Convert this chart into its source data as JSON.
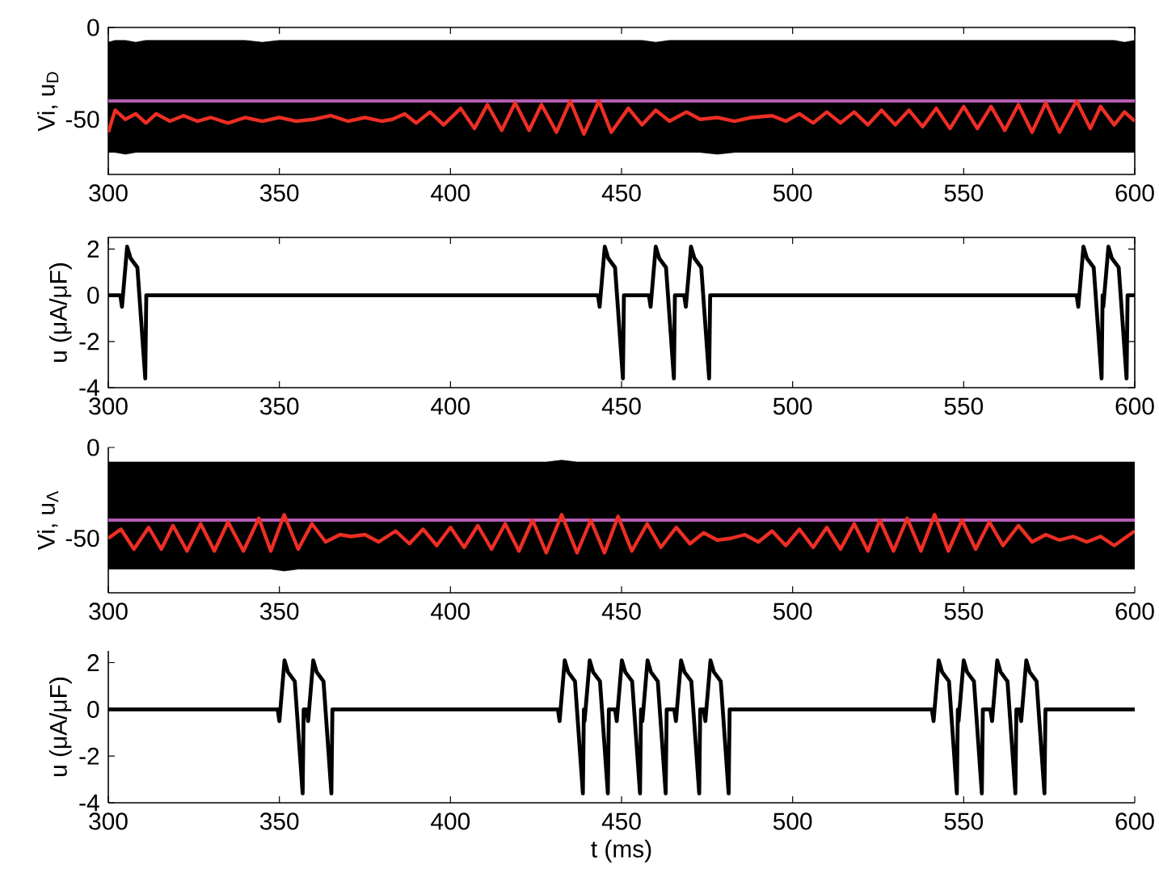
{
  "chart_data": [
    {
      "type": "line",
      "ylabel": "Vi, u$_{D}$",
      "xlim": [
        300,
        600
      ],
      "ylim": [
        -80,
        0
      ],
      "xticks": [
        300,
        350,
        400,
        450,
        500,
        550,
        600
      ],
      "yticks": [
        -50,
        0
      ],
      "ref_lines": [
        {
          "axis": "y",
          "value": -40,
          "color": "#b35cb3"
        }
      ],
      "series": [
        {
          "color": "#ee2e24",
          "x": [
            300,
            302,
            305,
            308,
            311,
            314,
            318,
            322,
            326,
            330,
            335,
            340,
            345,
            350,
            355,
            360,
            365,
            370,
            375,
            380,
            383,
            386.6,
            390,
            394,
            398,
            403,
            407,
            410.8,
            415,
            418.9,
            423,
            426.6,
            431,
            435,
            439,
            443.4,
            447,
            452,
            456,
            460,
            464,
            469,
            473,
            478,
            483,
            488,
            494,
            498,
            502,
            506,
            510,
            514,
            518,
            522,
            526,
            530,
            534,
            538,
            542,
            546,
            550,
            554,
            558,
            562,
            566,
            570,
            574,
            578,
            583,
            587,
            590,
            594,
            597,
            600
          ],
          "values": [
            -57,
            -45,
            -50,
            -47,
            -52,
            -47,
            -51,
            -48,
            -51,
            -49,
            -52,
            -49,
            -51,
            -49,
            -51,
            -50,
            -48,
            -51,
            -49,
            -51,
            -50,
            -47,
            -52,
            -46,
            -53,
            -44,
            -55,
            -42,
            -56,
            -41,
            -56,
            -42,
            -57,
            -40,
            -58,
            -40,
            -57,
            -44,
            -53,
            -45,
            -51,
            -46,
            -50,
            -49,
            -51,
            -49,
            -48,
            -51,
            -47,
            -52,
            -46,
            -52,
            -46,
            -53,
            -45,
            -53,
            -45,
            -54,
            -44,
            -55,
            -43,
            -55,
            -43,
            -56,
            -42,
            -57,
            -41,
            -57,
            -40,
            -55,
            -43,
            -53,
            -46,
            -51
          ],
          "upper": [
            -8,
            -7,
            -7,
            -8,
            -7,
            -7,
            -7,
            -7,
            -7,
            -7,
            -7,
            -7,
            -8,
            -7,
            -7,
            -7,
            -7,
            -7,
            -7,
            -7,
            -7,
            -7,
            -7,
            -7,
            -7,
            -7,
            -7,
            -7,
            -7,
            -7,
            -7,
            -7,
            -7,
            -7,
            -7,
            -7,
            -7,
            -7,
            -7,
            -8,
            -7,
            -7,
            -7,
            -7,
            -7,
            -7,
            -7,
            -7,
            -7,
            -7,
            -7,
            -7,
            -7,
            -7,
            -7,
            -7,
            -7,
            -7,
            -7,
            -7,
            -7,
            -7,
            -7,
            -7,
            -7,
            -7,
            -7,
            -7,
            -7,
            -7,
            -7,
            -7,
            -8,
            -7
          ],
          "lower": [
            -68,
            -68,
            -69,
            -68,
            -68,
            -68,
            -68,
            -68,
            -68,
            -68,
            -68,
            -68,
            -68,
            -68,
            -68,
            -68,
            -68,
            -68,
            -68,
            -68,
            -68,
            -68,
            -68,
            -68,
            -68,
            -68,
            -68,
            -68,
            -68,
            -68,
            -68,
            -68,
            -68,
            -68,
            -68,
            -68,
            -68,
            -68,
            -68,
            -68,
            -68,
            -68,
            -68,
            -69,
            -68,
            -68,
            -68,
            -68,
            -68,
            -68,
            -68,
            -68,
            -68,
            -68,
            -68,
            -68,
            -68,
            -68,
            -68,
            -68,
            -68,
            -68,
            -68,
            -68,
            -68,
            -68,
            -68,
            -68,
            -68,
            -68,
            -68,
            -68,
            -68,
            -68
          ]
        }
      ]
    },
    {
      "type": "line",
      "ylabel": "u (μA/μF)",
      "xlim": [
        300,
        600
      ],
      "ylim": [
        -4,
        2.5
      ],
      "xticks": [
        300,
        350,
        400,
        450,
        500,
        550,
        600
      ],
      "yticks": [
        -4,
        -2,
        0,
        2
      ],
      "series": [
        {
          "color": "#000000",
          "x": [
            300,
            303.5,
            304,
            305.5,
            306.5,
            308.5,
            310.8,
            311.1,
            443.1,
            443.6,
            445.1,
            446.1,
            448.1,
            450.4,
            450.7,
            458,
            458.5,
            460,
            461,
            463,
            465.3,
            465.6,
            468.3,
            468.8,
            470.3,
            471.3,
            473.3,
            475.6,
            475.9,
            583,
            583.5,
            585,
            586,
            588,
            590.3,
            590.6,
            590.8,
            592.3,
            593.3,
            595.3,
            597.6,
            597.9,
            600
          ],
          "values": [
            0,
            0,
            -0.5,
            2.1,
            1.6,
            1.2,
            -3.6,
            0,
            0,
            -0.5,
            2.1,
            1.6,
            1.2,
            -3.6,
            0,
            0,
            -0.5,
            2.1,
            1.6,
            1.2,
            -3.6,
            0,
            0,
            -0.5,
            2.1,
            1.6,
            1.2,
            -3.6,
            0,
            0,
            -0.5,
            2.1,
            1.6,
            1.2,
            -3.6,
            0,
            -0.5,
            2.1,
            1.6,
            1.2,
            -3.6,
            0,
            0
          ]
        }
      ]
    },
    {
      "type": "line",
      "ylabel": "Vi, u$_{Λ}$",
      "xlim": [
        300,
        600
      ],
      "ylim": [
        -80,
        0
      ],
      "xticks": [
        300,
        350,
        400,
        450,
        500,
        550,
        600
      ],
      "yticks": [
        -50,
        0
      ],
      "ref_lines": [
        {
          "axis": "y",
          "value": -40,
          "color": "#b35cb3"
        }
      ],
      "series": [
        {
          "color": "#ee2e24",
          "x": [
            300,
            303.7,
            307.5,
            311.8,
            315.5,
            318.9,
            323,
            327,
            331,
            335,
            339.5,
            344,
            347.5,
            351.4,
            355.5,
            359.5,
            363.5,
            367.7,
            371,
            375,
            379,
            384,
            388,
            392,
            396,
            400,
            404,
            408,
            412,
            416,
            420,
            424,
            428,
            432.5,
            437,
            441,
            445,
            449,
            453,
            457.5,
            461.5,
            466,
            470,
            474,
            478,
            482,
            486,
            490,
            494,
            498,
            502,
            506,
            510,
            514,
            518,
            522,
            525.5,
            529.5,
            533.5,
            537.5,
            541.5,
            545.5,
            549.5,
            553.5,
            557.5,
            561.5,
            566,
            570,
            574,
            578,
            582,
            586,
            590,
            594,
            597,
            600
          ],
          "values": [
            -50,
            -45,
            -56,
            -44,
            -56,
            -43,
            -57,
            -42,
            -57,
            -41,
            -57,
            -39,
            -57,
            -37,
            -56,
            -42,
            -52,
            -48,
            -49,
            -48,
            -52,
            -46,
            -53,
            -45,
            -54,
            -44,
            -55,
            -43,
            -56,
            -42,
            -57,
            -40,
            -58,
            -37,
            -58,
            -40,
            -58,
            -38,
            -57,
            -42,
            -55,
            -44,
            -53,
            -47,
            -51,
            -50,
            -48,
            -52,
            -46,
            -54,
            -45,
            -55,
            -44,
            -56,
            -42,
            -57,
            -40,
            -57,
            -39,
            -57,
            -37,
            -57,
            -40,
            -56,
            -41,
            -54,
            -43,
            -52,
            -48,
            -51,
            -49,
            -52,
            -49,
            -54,
            -50,
            -46
          ],
          "upper": [
            -8,
            -8,
            -8,
            -8,
            -8,
            -8,
            -8,
            -8,
            -8,
            -8,
            -8,
            -8,
            -8,
            -8,
            -8,
            -8,
            -8,
            -8,
            -8,
            -8,
            -8,
            -8,
            -8,
            -8,
            -8,
            -8,
            -8,
            -8,
            -8,
            -8,
            -8,
            -8,
            -8,
            -7,
            -8,
            -8,
            -8,
            -8,
            -8,
            -8,
            -8,
            -8,
            -8,
            -8,
            -8,
            -8,
            -8,
            -8,
            -8,
            -8,
            -8,
            -8,
            -8,
            -8,
            -8,
            -8,
            -8,
            -8,
            -8,
            -8,
            -8,
            -8,
            -8,
            -8,
            -8,
            -8,
            -8,
            -8,
            -8,
            -8,
            -8,
            -8,
            -8,
            -8,
            -8,
            -8
          ],
          "lower": [
            -67,
            -67,
            -67,
            -67,
            -67,
            -67,
            -67,
            -67,
            -67,
            -67,
            -67,
            -67,
            -67,
            -68,
            -67,
            -67,
            -67,
            -67,
            -67,
            -67,
            -67,
            -67,
            -67,
            -67,
            -67,
            -67,
            -67,
            -67,
            -67,
            -67,
            -67,
            -67,
            -67,
            -67,
            -67,
            -67,
            -67,
            -67,
            -67,
            -67,
            -67,
            -67,
            -67,
            -67,
            -67,
            -67,
            -67,
            -67,
            -67,
            -67,
            -67,
            -67,
            -67,
            -67,
            -67,
            -67,
            -67,
            -67,
            -67,
            -67,
            -67,
            -67,
            -67,
            -67,
            -67,
            -67,
            -67,
            -67,
            -67,
            -67,
            -67,
            -67,
            -67,
            -67,
            -67,
            -67
          ]
        }
      ]
    },
    {
      "type": "line",
      "ylabel": "u (μA/μF)",
      "xlabel": "t (ms)",
      "xlim": [
        300,
        600
      ],
      "ylim": [
        -4,
        2.5
      ],
      "xticks": [
        300,
        350,
        400,
        450,
        500,
        550,
        600
      ],
      "yticks": [
        -4,
        -2,
        0,
        2
      ],
      "series": [
        {
          "color": "#000000",
          "x": [
            300,
            349.5,
            350,
            351.5,
            352.5,
            354.5,
            356.8,
            357.1,
            357.9,
            358.4,
            359.9,
            360.9,
            362.9,
            365.2,
            365.5,
            431.4,
            431.9,
            433.4,
            434.4,
            436.4,
            438.7,
            439.0,
            439.2,
            440.7,
            441.7,
            443.7,
            446.0,
            446.3,
            448.1,
            448.6,
            450.1,
            451.1,
            453.1,
            455.4,
            455.7,
            456.1,
            457.6,
            458.6,
            460.6,
            462.9,
            463.2,
            465.4,
            465.9,
            467.4,
            468.4,
            470.4,
            472.7,
            473.0,
            474.0,
            474.5,
            476.0,
            477.0,
            479.0,
            481.3,
            481.6,
            540.7,
            541.2,
            542.7,
            543.7,
            545.7,
            548.0,
            548.3,
            548.5,
            550,
            551,
            553,
            555.3,
            555.6,
            557.8,
            558.3,
            559.8,
            560.8,
            562.8,
            565.1,
            565.4,
            566.3,
            566.8,
            568.3,
            569.3,
            571.3,
            573.6,
            573.9,
            600
          ],
          "values": [
            0,
            0,
            -0.5,
            2.1,
            1.6,
            1.2,
            -3.6,
            0,
            0,
            -0.5,
            2.1,
            1.6,
            1.2,
            -3.6,
            0,
            0,
            -0.5,
            2.1,
            1.6,
            1.2,
            -3.6,
            0,
            -0.5,
            2.1,
            1.6,
            1.2,
            -3.6,
            0,
            0,
            -0.5,
            2.1,
            1.6,
            1.2,
            -3.6,
            0,
            -0.5,
            2.1,
            1.6,
            1.2,
            -3.6,
            0,
            0,
            -0.5,
            2.1,
            1.6,
            1.2,
            -3.6,
            0,
            0,
            -0.5,
            2.1,
            1.6,
            1.2,
            -3.6,
            0,
            0,
            -0.5,
            2.1,
            1.6,
            1.2,
            -3.6,
            0,
            -0.5,
            2.1,
            1.6,
            1.2,
            -3.6,
            0,
            0,
            -0.5,
            2.1,
            1.6,
            1.2,
            -3.6,
            0,
            0,
            -0.5,
            2.1,
            1.6,
            1.2,
            -3.6,
            0,
            0
          ]
        }
      ]
    }
  ]
}
